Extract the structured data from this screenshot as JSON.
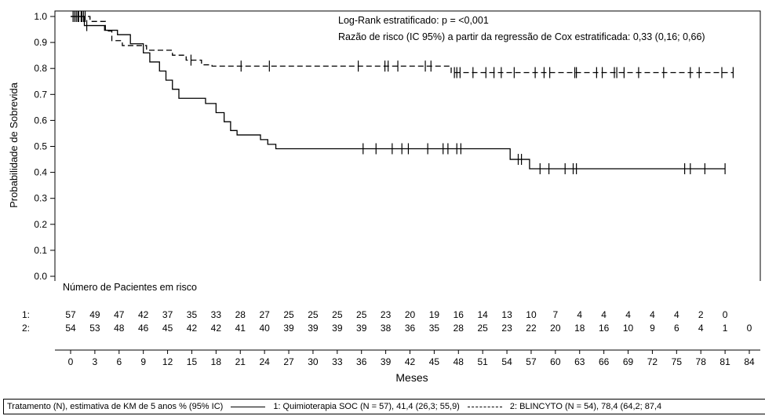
{
  "chart_data": {
    "type": "line",
    "title": "",
    "xlabel": "Meses",
    "ylabel": "Probabilidade de Sobrevida",
    "xlim": [
      0,
      84
    ],
    "ylim": [
      0,
      1.0
    ],
    "x_ticks": [
      0,
      3,
      6,
      9,
      12,
      15,
      18,
      21,
      24,
      27,
      30,
      33,
      36,
      39,
      42,
      45,
      48,
      51,
      54,
      57,
      60,
      63,
      66,
      69,
      72,
      75,
      78,
      81,
      84
    ],
    "y_ticks": [
      "0.0",
      "0.1",
      "0.2",
      "0.3",
      "0.4",
      "0.5",
      "0.6",
      "0.7",
      "0.8",
      "0.9",
      "1.0"
    ],
    "grid": false,
    "annotations": {
      "logrank": "Log-Rank estratificado: p = <0,001",
      "hazard": "Razão de risco (IC 95%) a partir da regressão de Cox estratificada: 0,33 (0,16; 0,66)"
    },
    "series": [
      {
        "id": "1",
        "style": "solid",
        "color": "#000000",
        "steps": [
          [
            0,
            1.0
          ],
          [
            1.7,
            0.965
          ],
          [
            4.2,
            0.947
          ],
          [
            5.8,
            0.93
          ],
          [
            7.4,
            0.895
          ],
          [
            9.0,
            0.86
          ],
          [
            9.8,
            0.825
          ],
          [
            11.0,
            0.79
          ],
          [
            11.8,
            0.755
          ],
          [
            12.6,
            0.72
          ],
          [
            13.4,
            0.685
          ],
          [
            16.7,
            0.665
          ],
          [
            18.0,
            0.63
          ],
          [
            19.0,
            0.595
          ],
          [
            19.8,
            0.561
          ],
          [
            20.6,
            0.544
          ],
          [
            23.5,
            0.526
          ],
          [
            24.4,
            0.508
          ],
          [
            25.4,
            0.491
          ],
          [
            54.4,
            0.45
          ],
          [
            56.8,
            0.414
          ],
          [
            81,
            0.414
          ]
        ],
        "censor_times": [
          0.5,
          0.9,
          1.3,
          1.6,
          2.0,
          36.2,
          37.8,
          39.8,
          41.0,
          41.8,
          44.2,
          46.1,
          46.7,
          47.8,
          48.3,
          55.4,
          55.8,
          58.1,
          59.2,
          61.2,
          62.2,
          62.6,
          76.0,
          76.7,
          78.5,
          81.0
        ]
      },
      {
        "id": "2",
        "style": "dashed",
        "color": "#000000",
        "steps": [
          [
            0,
            1.0
          ],
          [
            2.4,
            0.981
          ],
          [
            4.3,
            0.944
          ],
          [
            5.1,
            0.907
          ],
          [
            6.4,
            0.888
          ],
          [
            9.4,
            0.87
          ],
          [
            12.6,
            0.851
          ],
          [
            14.3,
            0.832
          ],
          [
            16.2,
            0.814
          ],
          [
            17.5,
            0.809
          ],
          [
            47.1,
            0.784
          ],
          [
            82,
            0.784
          ]
        ],
        "censor_times": [
          0.3,
          0.7,
          1.0,
          1.4,
          1.8,
          14.9,
          21.1,
          24.6,
          35.6,
          38.9,
          39.3,
          40.5,
          43.9,
          44.6,
          47.5,
          47.8,
          48.2,
          49.8,
          51.4,
          52.4,
          53.3,
          54.9,
          57.5,
          58.6,
          59.3,
          62.4,
          62.6,
          65.1,
          65.8,
          67.3,
          67.6,
          68.5,
          70.3,
          73.4,
          76.7,
          77.8,
          80.6,
          82.0
        ]
      }
    ],
    "risk_table": {
      "title": "Número de Pacientes em risco",
      "rows": [
        {
          "label": "1:",
          "times": [
            0,
            3,
            6,
            9,
            12,
            15,
            18,
            21,
            24,
            27,
            30,
            33,
            36,
            39,
            42,
            45,
            48,
            51,
            54,
            57,
            60,
            63,
            66,
            69,
            72,
            75,
            78,
            81
          ],
          "counts": [
            "57",
            "49",
            "47",
            "42",
            "37",
            "35",
            "33",
            "28",
            "27",
            "25",
            "25",
            "25",
            "25",
            "23",
            "20",
            "19",
            "16",
            "14",
            "13",
            "10",
            "7",
            "4",
            "4",
            "4",
            "4",
            "4",
            "2",
            "0"
          ]
        },
        {
          "label": "2:",
          "times": [
            0,
            3,
            6,
            9,
            12,
            15,
            18,
            21,
            24,
            27,
            30,
            33,
            36,
            39,
            42,
            45,
            48,
            51,
            54,
            57,
            60,
            63,
            66,
            69,
            72,
            75,
            78,
            81,
            84
          ],
          "counts": [
            "54",
            "53",
            "48",
            "46",
            "45",
            "42",
            "42",
            "41",
            "40",
            "39",
            "39",
            "39",
            "39",
            "38",
            "36",
            "35",
            "28",
            "25",
            "23",
            "22",
            "20",
            "18",
            "16",
            "10",
            "9",
            "6",
            "4",
            "1",
            "0"
          ]
        }
      ]
    },
    "legend": {
      "prefix": "Tratamento (N), estimativa de KM de 5 anos % (95% IC)",
      "items": [
        {
          "style": "solid",
          "label": "1: Quimioterapia SOC (N = 57), 41,4 (26,3; 55,9)"
        },
        {
          "style": "dashed",
          "label": "2: BLINCYTO (N = 54), 78,4 (64,2; 87,4"
        }
      ]
    }
  }
}
